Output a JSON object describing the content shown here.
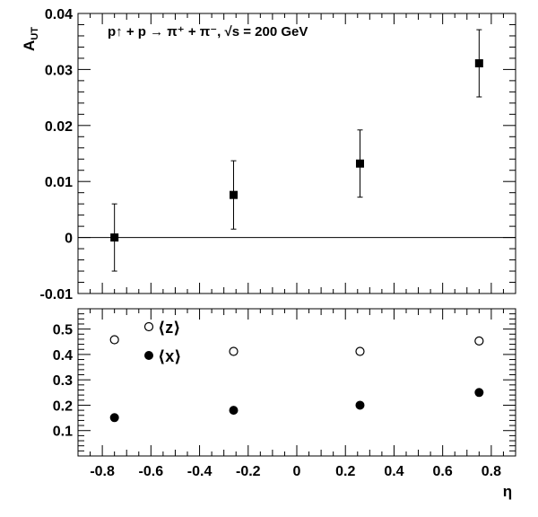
{
  "chart_data": [
    {
      "type": "scatter",
      "title": "",
      "annotation": "p↑ + p → π⁺ + π⁻,  √s = 200 GeV",
      "xlabel": "",
      "ylabel": "A_UT",
      "ylabel_main": "A",
      "ylabel_sub": "UT",
      "xlim": [
        -0.9,
        0.9
      ],
      "ylim": [
        -0.01,
        0.04
      ],
      "y_ticks": [
        "-0.01",
        "0",
        "0.01",
        "0.02",
        "0.03",
        "0.04"
      ],
      "reference_line": 0,
      "points": [
        {
          "x": -0.75,
          "y": 0.0,
          "err": 0.006
        },
        {
          "x": -0.26,
          "y": 0.0076,
          "err": 0.0061
        },
        {
          "x": 0.26,
          "y": 0.0132,
          "err": 0.006
        },
        {
          "x": 0.75,
          "y": 0.0311,
          "err": 0.006
        }
      ]
    },
    {
      "type": "scatter",
      "title": "",
      "xlabel": "η",
      "ylabel": "",
      "xlim": [
        -0.9,
        0.9
      ],
      "ylim": [
        0.0,
        0.58
      ],
      "y_ticks": [
        "0.1",
        "0.2",
        "0.3",
        "0.4",
        "0.5"
      ],
      "x_ticks": [
        "-0.8",
        "-0.6",
        "-0.4",
        "-0.2",
        "0",
        "0.2",
        "0.4",
        "0.6",
        "0.8"
      ],
      "series": [
        {
          "name": "⟨z⟩",
          "marker": "open-circle",
          "x": [
            -0.75,
            -0.26,
            0.26,
            0.75
          ],
          "values": [
            0.458,
            0.412,
            0.412,
            0.453
          ]
        },
        {
          "name": "⟨x⟩",
          "marker": "filled-circle",
          "x": [
            -0.75,
            -0.26,
            0.26,
            0.75
          ],
          "values": [
            0.151,
            0.18,
            0.2,
            0.25
          ]
        }
      ]
    }
  ]
}
